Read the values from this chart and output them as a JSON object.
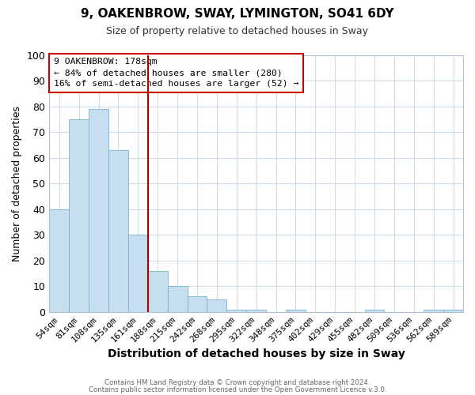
{
  "title": "9, OAKENBROW, SWAY, LYMINGTON, SO41 6DY",
  "subtitle": "Size of property relative to detached houses in Sway",
  "xlabel": "Distribution of detached houses by size in Sway",
  "ylabel": "Number of detached properties",
  "bar_color": "#c5dff0",
  "bar_edge_color": "#7ab3d0",
  "categories": [
    "54sqm",
    "81sqm",
    "108sqm",
    "135sqm",
    "161sqm",
    "188sqm",
    "215sqm",
    "242sqm",
    "268sqm",
    "295sqm",
    "322sqm",
    "348sqm",
    "375sqm",
    "402sqm",
    "429sqm",
    "455sqm",
    "482sqm",
    "509sqm",
    "536sqm",
    "562sqm",
    "589sqm"
  ],
  "values": [
    40,
    75,
    79,
    63,
    30,
    16,
    10,
    6,
    5,
    1,
    1,
    0,
    1,
    0,
    0,
    0,
    1,
    0,
    0,
    1,
    1
  ],
  "vline_index": 4.5,
  "vline_color": "#aa0000",
  "annotation_title": "9 OAKENBROW: 178sqm",
  "annotation_line1": "← 84% of detached houses are smaller (280)",
  "annotation_line2": "16% of semi-detached houses are larger (52) →",
  "ylim": [
    0,
    100
  ],
  "yticks": [
    0,
    10,
    20,
    30,
    40,
    50,
    60,
    70,
    80,
    90,
    100
  ],
  "footer1": "Contains HM Land Registry data © Crown copyright and database right 2024.",
  "footer2": "Contains public sector information licensed under the Open Government Licence v.3.0."
}
